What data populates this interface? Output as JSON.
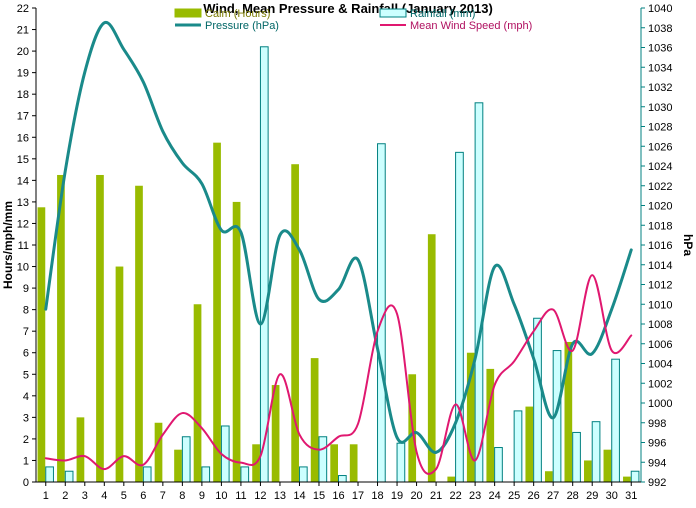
{
  "chart_data": {
    "type": "bar",
    "title": "Wind, Mean Pressure & Rainfall (January 2013)",
    "xlabel": "",
    "ylabel": "Hours/mph/mm",
    "y2label": "hPa",
    "categories": [
      "1",
      "2",
      "3",
      "4",
      "5",
      "6",
      "7",
      "8",
      "9",
      "10",
      "11",
      "12",
      "13",
      "14",
      "15",
      "16",
      "17",
      "18",
      "19",
      "20",
      "21",
      "22",
      "23",
      "24",
      "25",
      "26",
      "27",
      "28",
      "29",
      "30",
      "31"
    ],
    "ylim": [
      0,
      22
    ],
    "y2lim": [
      992,
      1040
    ],
    "yticks": [
      "0",
      "1",
      "2",
      "3",
      "4",
      "5",
      "6",
      "7",
      "8",
      "9",
      "10",
      "11",
      "12",
      "13",
      "14",
      "15",
      "16",
      "17",
      "18",
      "19",
      "20",
      "21",
      "22"
    ],
    "y2ticks": [
      "992",
      "994",
      "996",
      "998",
      "1000",
      "1002",
      "1004",
      "1006",
      "1008",
      "1010",
      "1012",
      "1014",
      "1016",
      "1018",
      "1020",
      "1022",
      "1024",
      "1026",
      "1028",
      "1030",
      "1032",
      "1034",
      "1036",
      "1038",
      "1040"
    ],
    "grid": false,
    "legend_position": "top",
    "series": [
      {
        "name": "Calm (Hours)",
        "kind": "bar",
        "axis": "left",
        "color": "#99bb00",
        "values": [
          12.75,
          14.25,
          3.0,
          14.25,
          10.0,
          13.75,
          2.75,
          1.5,
          8.25,
          15.75,
          13.0,
          1.75,
          4.5,
          14.75,
          5.75,
          1.75,
          1.75,
          0,
          0,
          5.0,
          11.5,
          0.25,
          6.0,
          5.25,
          0,
          3.5,
          0.5,
          6.5,
          1.0,
          1.5,
          0.25
        ]
      },
      {
        "name": "Rainfall (mm)",
        "kind": "bar",
        "axis": "left",
        "color": "#ccffff",
        "stroke": "#008080",
        "values": [
          0.7,
          0.5,
          0,
          0,
          0,
          0.7,
          0,
          2.1,
          0.7,
          2.6,
          0.7,
          20.2,
          0,
          0.7,
          2.1,
          0.3,
          0,
          15.7,
          1.8,
          0,
          0,
          15.3,
          17.6,
          1.6,
          3.3,
          7.6,
          6.1,
          2.3,
          2.8,
          5.7,
          0.5
        ]
      },
      {
        "name": "Pressure (hPa)",
        "kind": "line",
        "axis": "right",
        "color": "#1a8a8a",
        "values": [
          1009.5,
          1023.5,
          1033.5,
          1038.5,
          1035.8,
          1032.5,
          1027.5,
          1024.3,
          1022.2,
          1017.5,
          1017.3,
          1008.0,
          1017.0,
          1015.5,
          1010.5,
          1011.5,
          1014.5,
          1005.5,
          996.5,
          997.0,
          995.0,
          998.0,
          1004.5,
          1013.8,
          1010.0,
          1004.5,
          998.5,
          1006.0,
          1005.0,
          1009.5,
          1015.5
        ]
      },
      {
        "name": "Mean Wind Speed (mph)",
        "kind": "line",
        "axis": "left",
        "color": "#e01870",
        "values": [
          1.1,
          1.0,
          1.2,
          0.6,
          1.2,
          0.8,
          2.2,
          3.2,
          2.5,
          1.3,
          0.9,
          1.2,
          5.0,
          2.2,
          1.5,
          2.1,
          2.7,
          7.0,
          7.8,
          1.4,
          0.6,
          3.6,
          1.0,
          4.5,
          5.6,
          7.0,
          8.0,
          6.1,
          9.6,
          6.1,
          6.8
        ]
      }
    ]
  }
}
